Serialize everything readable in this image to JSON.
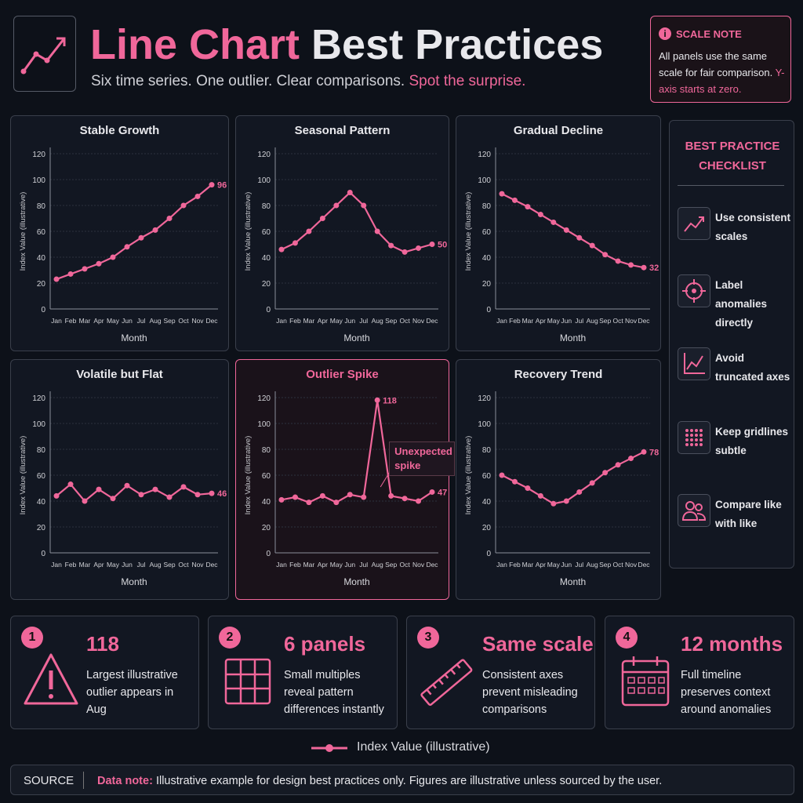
{
  "header": {
    "title_highlight": "Line Chart",
    "title_rest": "Best Practices",
    "subtitle": "Six time series. One outlier. Clear comparisons.",
    "subtitle_highlight": "Spot the surprise."
  },
  "scale_note": {
    "label": "SCALE NOTE",
    "text": "All panels use the same scale for fair comparison.",
    "highlight": "Y-axis starts at zero."
  },
  "chart_data": [
    {
      "type": "line",
      "title": "Stable Growth",
      "x_label": "Month",
      "y_label": "Index Value (illustrative)",
      "categories": [
        "Jan",
        "Feb",
        "Mar",
        "Apr",
        "May",
        "Jun",
        "Jul",
        "Aug",
        "Sep",
        "Oct",
        "Nov",
        "Dec"
      ],
      "values": [
        23,
        27,
        31,
        35,
        40,
        48,
        55,
        61,
        70,
        80,
        87,
        96
      ],
      "color": "#f0679a",
      "ylim": [
        0,
        120
      ],
      "yticks": [
        0,
        20,
        40,
        60,
        80,
        100,
        120
      ],
      "grid": true
    },
    {
      "type": "line",
      "title": "Seasonal Pattern",
      "x_label": "Month",
      "y_label": "Index Value (illustrative)",
      "categories": [
        "Jan",
        "Feb",
        "Mar",
        "Apr",
        "May",
        "Jun",
        "Jul",
        "Aug",
        "Sep",
        "Oct",
        "Nov",
        "Dec"
      ],
      "values": [
        46,
        51,
        60,
        70,
        80,
        90,
        80,
        60,
        49,
        44,
        47,
        50
      ],
      "color": "#f0679a",
      "ylim": [
        0,
        120
      ],
      "yticks": [
        0,
        20,
        40,
        60,
        80,
        100,
        120
      ],
      "grid": true
    },
    {
      "type": "line",
      "title": "Gradual Decline",
      "x_label": "Month",
      "y_label": "Index Value (illustrative)",
      "categories": [
        "Jan",
        "Feb",
        "Mar",
        "Apr",
        "May",
        "Jun",
        "Jul",
        "Aug",
        "Sep",
        "Oct",
        "Nov",
        "Dec"
      ],
      "values": [
        89,
        84,
        79,
        73,
        67,
        61,
        55,
        49,
        42,
        37,
        34,
        32
      ],
      "color": "#f0679a",
      "ylim": [
        0,
        120
      ],
      "yticks": [
        0,
        20,
        40,
        60,
        80,
        100,
        120
      ],
      "grid": true
    },
    {
      "type": "line",
      "title": "Volatile but Flat",
      "x_label": "Month",
      "y_label": "Index Value (illustrative)",
      "categories": [
        "Jan",
        "Feb",
        "Mar",
        "Apr",
        "May",
        "Jun",
        "Jul",
        "Aug",
        "Sep",
        "Oct",
        "Nov",
        "Dec"
      ],
      "values": [
        44,
        53,
        40,
        49,
        42,
        52,
        45,
        49,
        43,
        51,
        45,
        46
      ],
      "color": "#f0679a",
      "ylim": [
        0,
        120
      ],
      "yticks": [
        0,
        20,
        40,
        60,
        80,
        100,
        120
      ],
      "grid": true
    },
    {
      "type": "line",
      "title": "Outlier Spike",
      "x_label": "Month",
      "y_label": "Index Value (illustrative)",
      "categories": [
        "Jan",
        "Feb",
        "Mar",
        "Apr",
        "May",
        "Jun",
        "Jul",
        "Aug",
        "Sep",
        "Oct",
        "Nov",
        "Dec"
      ],
      "values": [
        41,
        43,
        39,
        44,
        39,
        45,
        43,
        118,
        44,
        42,
        40,
        47
      ],
      "color": "#f0679a",
      "ylim": [
        0,
        120
      ],
      "yticks": [
        0,
        20,
        40,
        60,
        80,
        100,
        120
      ],
      "grid": true,
      "highlight": true,
      "annotation": "Unexpected spike"
    },
    {
      "type": "line",
      "title": "Recovery Trend",
      "x_label": "Month",
      "y_label": "Index Value (illustrative)",
      "categories": [
        "Jan",
        "Feb",
        "Mar",
        "Apr",
        "May",
        "Jun",
        "Jul",
        "Aug",
        "Sep",
        "Oct",
        "Nov",
        "Dec"
      ],
      "values": [
        60,
        55,
        50,
        44,
        38,
        40,
        47,
        54,
        62,
        68,
        73,
        78
      ],
      "color": "#f0679a",
      "ylim": [
        0,
        120
      ],
      "yticks": [
        0,
        20,
        40,
        60,
        80,
        100,
        120
      ],
      "grid": true
    }
  ],
  "checklist": {
    "title": "BEST PRACTICE CHECKLIST",
    "items": [
      "Use consistent scales",
      "Label anomalies directly",
      "Avoid truncated axes",
      "Keep gridlines subtle",
      "Compare like with like"
    ]
  },
  "stats": [
    {
      "number": "1",
      "headline": "118",
      "text": "Largest illustrative outlier appears in Aug"
    },
    {
      "number": "2",
      "headline": "6 panels",
      "text": "Small multiples reveal pattern differences instantly"
    },
    {
      "number": "3",
      "headline": "Same scale",
      "text": "Consistent axes prevent misleading comparisons"
    },
    {
      "number": "4",
      "headline": "12 months",
      "text": "Full timeline preserves context around anomalies"
    }
  ],
  "legend": "Index Value (illustrative)",
  "source": {
    "label": "SOURCE",
    "note_label": "Data note:",
    "note": "Illustrative example for design best practices only. Figures are illustrative unless sourced by the user."
  }
}
